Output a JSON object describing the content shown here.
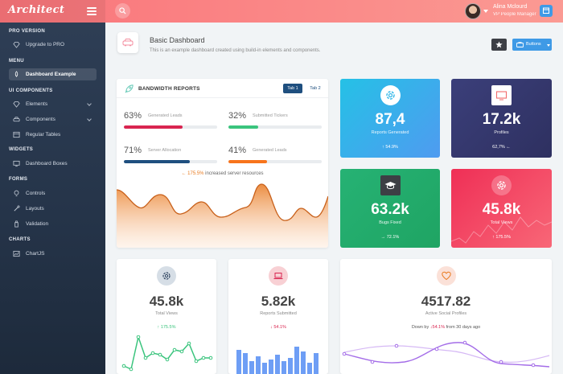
{
  "header": {
    "logo": "Architect",
    "user_name": "Alina Mclourd",
    "user_role": "VP People Manager"
  },
  "sidebar": {
    "sections": [
      {
        "heading": "PRO VERSION",
        "items": [
          {
            "label": "Upgrade to PRO",
            "icon": "gem-icon"
          }
        ]
      },
      {
        "heading": "MENU",
        "items": [
          {
            "label": "Dashboard Example",
            "icon": "rocket-icon",
            "active": true
          }
        ]
      },
      {
        "heading": "UI COMPONENTS",
        "items": [
          {
            "label": "Elements",
            "icon": "diamond-icon",
            "expandable": true
          },
          {
            "label": "Components",
            "icon": "car-icon",
            "expandable": true
          },
          {
            "label": "Regular Tables",
            "icon": "table-icon"
          }
        ]
      },
      {
        "heading": "WIDGETS",
        "items": [
          {
            "label": "Dashboard Boxes",
            "icon": "display-icon"
          }
        ]
      },
      {
        "heading": "FORMS",
        "items": [
          {
            "label": "Controls",
            "icon": "light-icon"
          },
          {
            "label": "Layouts",
            "icon": "eyedropper-icon"
          },
          {
            "label": "Validation",
            "icon": "pendrive-icon"
          }
        ]
      },
      {
        "heading": "CHARTS",
        "items": [
          {
            "label": "ChartJS",
            "icon": "graph-icon"
          }
        ]
      }
    ]
  },
  "page": {
    "title": "Basic Dashboard",
    "subtitle": "This is an example dashboard created using build-in elements and components.",
    "buttons_label": "Buttons"
  },
  "bandwidth": {
    "title": "BANDWIDTH REPORTS",
    "tab1": "Tab 1",
    "tab2": "Tab 2",
    "metrics": [
      {
        "pct": "63%",
        "label": "Generated Leads",
        "fill": 0.63,
        "color": "#d92550"
      },
      {
        "pct": "32%",
        "label": "Submitted Tickers",
        "fill": 0.32,
        "color": "#3ac47d"
      },
      {
        "pct": "71%",
        "label": "Server Allocation",
        "fill": 0.71,
        "color": "#1f4f7f"
      },
      {
        "pct": "41%",
        "label": "Generated Leads",
        "fill": 0.41,
        "color": "#f7741c"
      }
    ],
    "note_value": "175.5%",
    "note_text": " increased server resources"
  },
  "tiles": [
    {
      "value": "87,4",
      "label": "Reports Generated",
      "change": "54.9%",
      "change_dir": "up",
      "icon": "gear-icon"
    },
    {
      "value": "17.2k",
      "label": "Profiles",
      "change": "62,7%",
      "change_dir": "left",
      "icon": "monitor-icon"
    },
    {
      "value": "63.2k",
      "label": "Bugs Fixed",
      "change": "72.1%",
      "change_dir": "right",
      "icon": "graduation-icon"
    },
    {
      "value": "45.8k",
      "label": "Total Views",
      "change": "175.5%",
      "change_dir": "up",
      "icon": "gear-icon"
    }
  ],
  "bottom": [
    {
      "value": "45.8k",
      "label": "Total Views",
      "change": "175.5%",
      "change_dir": "up",
      "icon": "gear-icon"
    },
    {
      "value": "5.82k",
      "label": "Reports Submitted",
      "change": "54.1%",
      "change_dir": "down",
      "icon": "laptop-icon"
    },
    {
      "value": "4517.82",
      "label": "Active Social Profiles",
      "down_prefix": "Down by ",
      "change": "54.1%",
      "down_suffix": " from 30 days ago",
      "icon": "heart-icon"
    }
  ],
  "colors": {
    "header_start": "#f9747a",
    "header_end": "#fb9a93",
    "accent_blue": "#3f9ae6",
    "success": "#3ac47d",
    "danger": "#d92550",
    "warning": "#f7741c"
  }
}
